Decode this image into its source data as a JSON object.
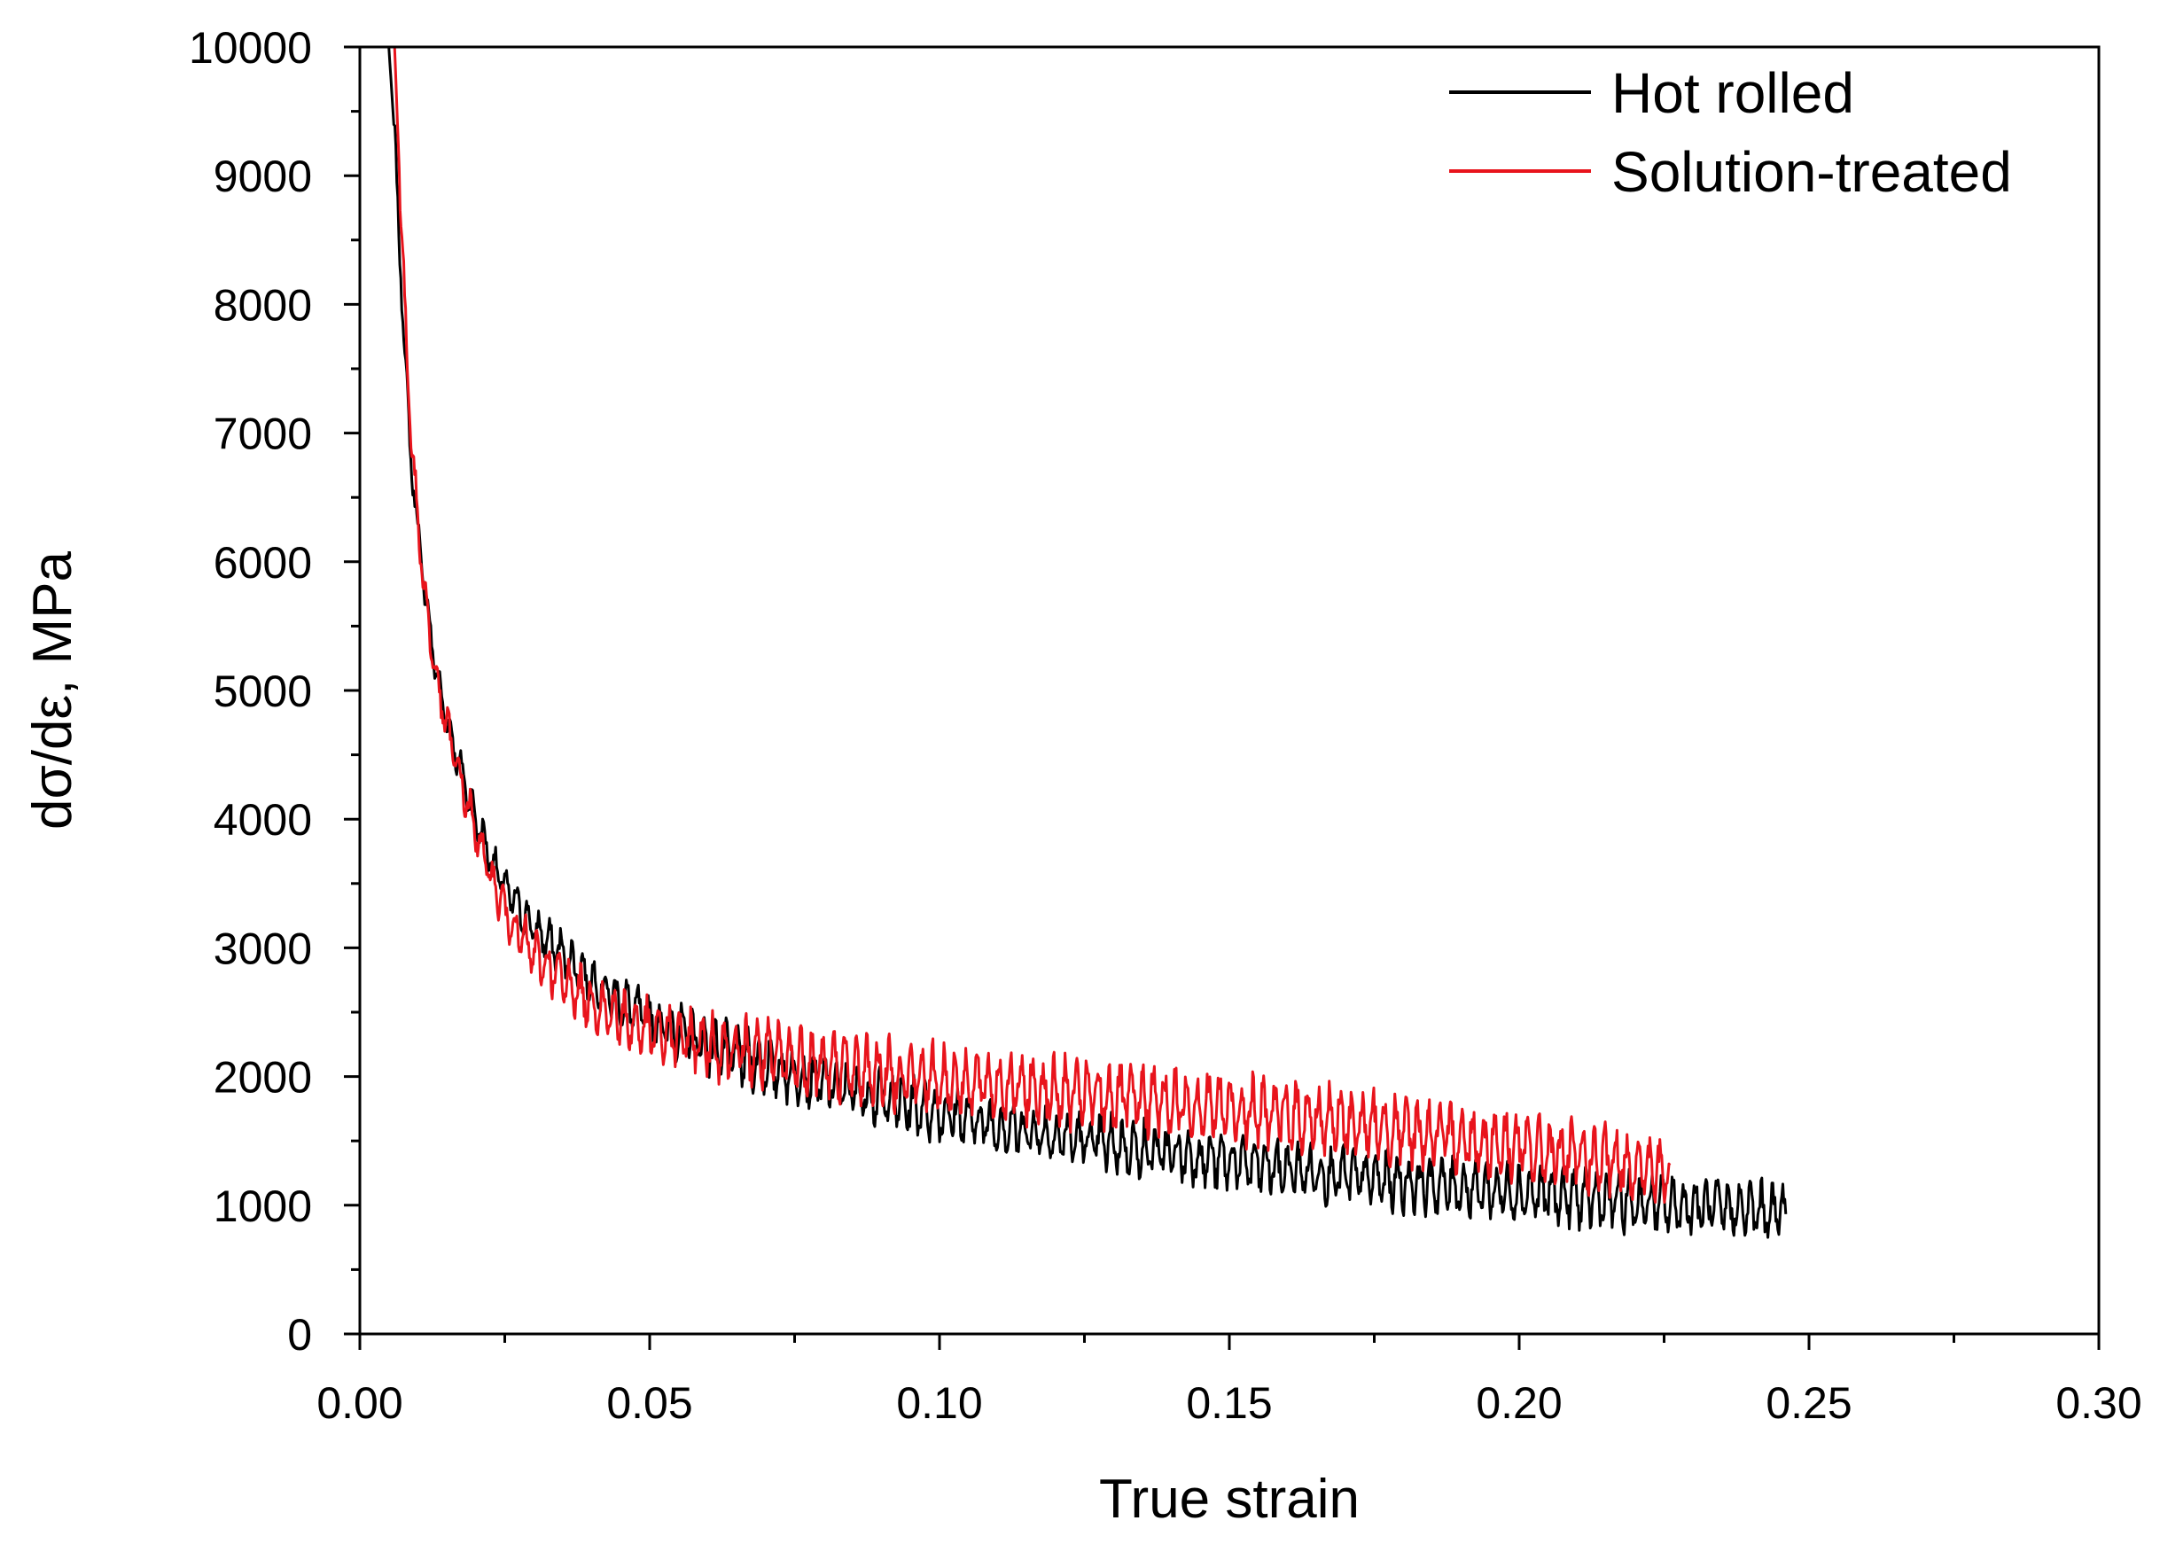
{
  "chart_data": {
    "type": "line",
    "title": "",
    "xlabel": "True strain",
    "ylabel": "dσ/dε, MPa",
    "xlim": [
      0.0,
      0.3
    ],
    "ylim": [
      0,
      10000
    ],
    "x_ticks": [
      0.0,
      0.05,
      0.1,
      0.15,
      0.2,
      0.25,
      0.3
    ],
    "x_tick_labels": [
      "0.00",
      "0.05",
      "0.10",
      "0.15",
      "0.20",
      "0.25",
      "0.30"
    ],
    "y_ticks": [
      0,
      1000,
      2000,
      3000,
      4000,
      5000,
      6000,
      7000,
      8000,
      9000,
      10000
    ],
    "y_tick_labels": [
      "0",
      "1000",
      "2000",
      "3000",
      "4000",
      "5000",
      "6000",
      "7000",
      "8000",
      "9000",
      "10000"
    ],
    "grid": false,
    "legend_position": "top-right",
    "series": [
      {
        "name": "Hot rolled",
        "color": "#000000",
        "x": [
          0.005,
          0.006,
          0.007,
          0.008,
          0.009,
          0.01,
          0.011,
          0.012,
          0.013,
          0.014,
          0.016,
          0.018,
          0.02,
          0.023,
          0.026,
          0.03,
          0.035,
          0.04,
          0.045,
          0.05,
          0.06,
          0.07,
          0.08,
          0.09,
          0.1,
          0.11,
          0.12,
          0.13,
          0.14,
          0.15,
          0.16,
          0.17,
          0.18,
          0.19,
          0.2,
          0.21,
          0.22,
          0.23,
          0.24,
          0.246
        ],
        "y": [
          10000,
          9300,
          8300,
          7400,
          6700,
          6250,
          5850,
          5500,
          5200,
          4950,
          4600,
          4300,
          4000,
          3650,
          3400,
          3150,
          2950,
          2750,
          2580,
          2450,
          2250,
          2080,
          1950,
          1830,
          1720,
          1620,
          1540,
          1470,
          1400,
          1340,
          1280,
          1230,
          1180,
          1140,
          1100,
          1060,
          1020,
          990,
          960,
          950
        ],
        "noise_amplitude": 220
      },
      {
        "name": "Solution-treated",
        "color": "#e8141c",
        "x": [
          0.006,
          0.007,
          0.008,
          0.009,
          0.01,
          0.011,
          0.012,
          0.013,
          0.014,
          0.016,
          0.018,
          0.02,
          0.023,
          0.026,
          0.03,
          0.035,
          0.04,
          0.045,
          0.05,
          0.06,
          0.07,
          0.08,
          0.09,
          0.1,
          0.11,
          0.12,
          0.13,
          0.14,
          0.15,
          0.16,
          0.17,
          0.18,
          0.19,
          0.2,
          0.21,
          0.22,
          0.226
        ],
        "y": [
          10000,
          8800,
          7700,
          6900,
          6300,
          5850,
          5450,
          5150,
          4900,
          4550,
          4200,
          3900,
          3500,
          3200,
          2950,
          2750,
          2580,
          2450,
          2350,
          2250,
          2170,
          2100,
          2030,
          1980,
          1930,
          1880,
          1840,
          1800,
          1750,
          1700,
          1640,
          1580,
          1520,
          1450,
          1380,
          1300,
          1240
        ],
        "noise_amplitude": 260
      }
    ]
  }
}
